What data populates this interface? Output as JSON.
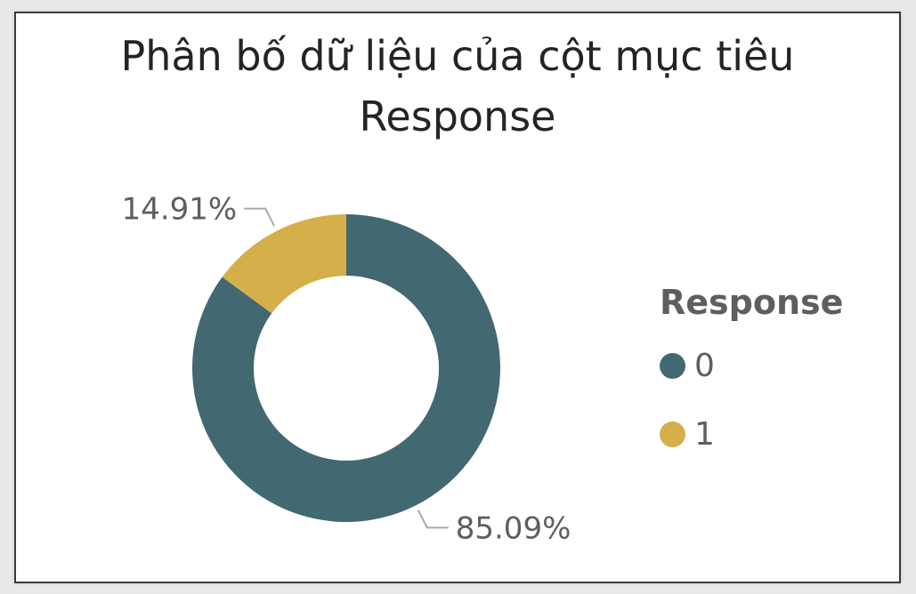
{
  "chart_data": {
    "type": "pie",
    "style": "donut",
    "title": "Phân bố dữ liệu của cột mục tiêu Response",
    "title_lines": [
      "Phân bố dữ liệu của cột mục tiêu",
      "Response"
    ],
    "legend_title": "Response",
    "legend_position": "right",
    "categories": [
      "0",
      "1"
    ],
    "values": [
      85.09,
      14.91
    ],
    "data_labels": [
      "85.09%",
      "14.91%"
    ],
    "colors": [
      "#426871",
      "#d4af4a"
    ]
  }
}
